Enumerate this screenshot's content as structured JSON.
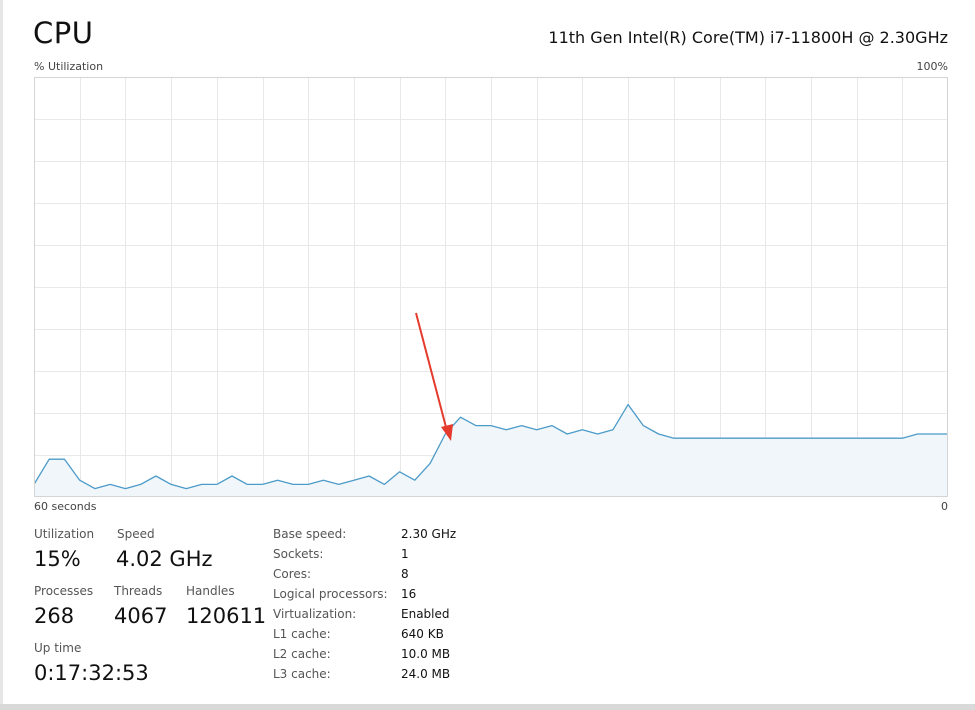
{
  "header": {
    "title": "CPU",
    "cpu_model": "11th Gen Intel(R) Core(TM) i7-11800H @ 2.30GHz"
  },
  "graph": {
    "y_label": "% Utilization",
    "y_max_label": "100%",
    "x_left_label": "60 seconds",
    "x_right_label": "0",
    "line_color": "#4c9bc8",
    "fill_color": "#f0f6fa",
    "grid_color": "#e8e8e8",
    "arrow_color": "#e53b2c"
  },
  "chart_data": {
    "type": "area",
    "y_range": [
      0,
      100
    ],
    "grid": true,
    "x": [
      60,
      59,
      58,
      57,
      56,
      55,
      54,
      53,
      52,
      51,
      50,
      49,
      48,
      47,
      46,
      45,
      44,
      43,
      42,
      41,
      40,
      39,
      38,
      37,
      36,
      35,
      34,
      33,
      32,
      31,
      30,
      29,
      28,
      27,
      26,
      25,
      24,
      23,
      22,
      21,
      20,
      19,
      18,
      17,
      16,
      15,
      14,
      13,
      12,
      11,
      10,
      9,
      8,
      7,
      6,
      5,
      4,
      3,
      2,
      1,
      0
    ],
    "values": [
      3,
      9,
      9,
      4,
      2,
      3,
      2,
      3,
      5,
      3,
      2,
      3,
      3,
      5,
      3,
      3,
      4,
      3,
      3,
      4,
      3,
      4,
      5,
      3,
      6,
      4,
      8,
      15,
      19,
      17,
      17,
      16,
      17,
      16,
      17,
      15,
      16,
      15,
      16,
      22,
      17,
      15,
      14,
      14,
      14,
      14,
      14,
      14,
      14,
      14,
      14,
      14,
      14,
      14,
      14,
      14,
      14,
      14,
      15,
      15,
      15
    ]
  },
  "stats": {
    "utilization": {
      "label": "Utilization",
      "value": "15%"
    },
    "speed": {
      "label": "Speed",
      "value": "4.02 GHz"
    },
    "processes": {
      "label": "Processes",
      "value": "268"
    },
    "threads": {
      "label": "Threads",
      "value": "4067"
    },
    "handles": {
      "label": "Handles",
      "value": "120611"
    },
    "uptime": {
      "label": "Up time",
      "value": "0:17:32:53"
    }
  },
  "info": [
    {
      "key": "Base speed:",
      "value": "2.30 GHz"
    },
    {
      "key": "Sockets:",
      "value": "1"
    },
    {
      "key": "Cores:",
      "value": "8"
    },
    {
      "key": "Logical processors:",
      "value": "16"
    },
    {
      "key": "Virtualization:",
      "value": "Enabled"
    },
    {
      "key": "L1 cache:",
      "value": "640 KB"
    },
    {
      "key": "L2 cache:",
      "value": "10.0 MB"
    },
    {
      "key": "L3 cache:",
      "value": "24.0 MB"
    }
  ]
}
